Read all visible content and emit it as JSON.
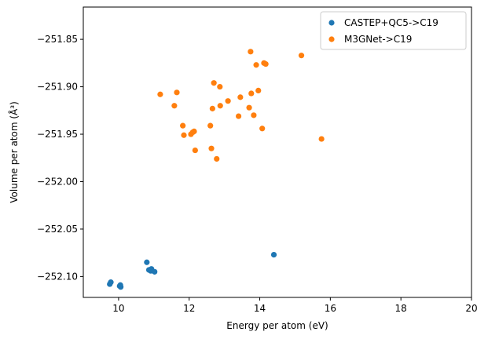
{
  "chart_data": {
    "type": "scatter",
    "title": "",
    "xlabel": "Energy per atom (eV)",
    "ylabel": "Volume per atom (Å³)",
    "xlim": [
      9.0,
      20.0
    ],
    "ylim": [
      -252.122,
      -251.816
    ],
    "xticks": [
      10,
      12,
      14,
      16,
      18,
      20
    ],
    "xtick_labels": [
      "10",
      "12",
      "14",
      "16",
      "18",
      "20"
    ],
    "yticks": [
      -252.1,
      -252.05,
      -252.0,
      -251.95,
      -251.9,
      -251.85
    ],
    "ytick_labels": [
      "−252.10",
      "−252.05",
      "−252.00",
      "−251.95",
      "−251.90",
      "−251.85"
    ],
    "grid": false,
    "legend_position": "top-right",
    "series": [
      {
        "name": "CASTEP+QC5->C19",
        "color": "#1f77b4",
        "points": [
          {
            "x": 9.75,
            "y": -252.108
          },
          {
            "x": 9.78,
            "y": -252.106
          },
          {
            "x": 10.03,
            "y": -252.11
          },
          {
            "x": 10.05,
            "y": -252.109
          },
          {
            "x": 10.06,
            "y": -252.111
          },
          {
            "x": 10.8,
            "y": -252.085
          },
          {
            "x": 10.86,
            "y": -252.093
          },
          {
            "x": 10.91,
            "y": -252.094
          },
          {
            "x": 10.93,
            "y": -252.092
          },
          {
            "x": 11.02,
            "y": -252.095
          },
          {
            "x": 14.4,
            "y": -252.077
          }
        ]
      },
      {
        "name": "M3GNet->C19",
        "color": "#ff7f0e",
        "points": [
          {
            "x": 11.18,
            "y": -251.908
          },
          {
            "x": 11.58,
            "y": -251.92
          },
          {
            "x": 11.65,
            "y": -251.906
          },
          {
            "x": 11.82,
            "y": -251.941
          },
          {
            "x": 11.85,
            "y": -251.951
          },
          {
            "x": 12.05,
            "y": -251.95
          },
          {
            "x": 12.1,
            "y": -251.948
          },
          {
            "x": 12.14,
            "y": -251.947
          },
          {
            "x": 12.17,
            "y": -251.967
          },
          {
            "x": 12.6,
            "y": -251.941
          },
          {
            "x": 12.63,
            "y": -251.965
          },
          {
            "x": 12.66,
            "y": -251.923
          },
          {
            "x": 12.7,
            "y": -251.896
          },
          {
            "x": 12.78,
            "y": -251.976
          },
          {
            "x": 12.87,
            "y": -251.9
          },
          {
            "x": 12.88,
            "y": -251.92
          },
          {
            "x": 13.1,
            "y": -251.915
          },
          {
            "x": 13.4,
            "y": -251.931
          },
          {
            "x": 13.45,
            "y": -251.911
          },
          {
            "x": 13.7,
            "y": -251.922
          },
          {
            "x": 13.74,
            "y": -251.863
          },
          {
            "x": 13.76,
            "y": -251.907
          },
          {
            "x": 13.83,
            "y": -251.93
          },
          {
            "x": 13.9,
            "y": -251.877
          },
          {
            "x": 13.96,
            "y": -251.904
          },
          {
            "x": 14.07,
            "y": -251.944
          },
          {
            "x": 14.12,
            "y": -251.875
          },
          {
            "x": 14.17,
            "y": -251.876
          },
          {
            "x": 15.18,
            "y": -251.867
          },
          {
            "x": 15.75,
            "y": -251.955
          }
        ]
      }
    ]
  }
}
